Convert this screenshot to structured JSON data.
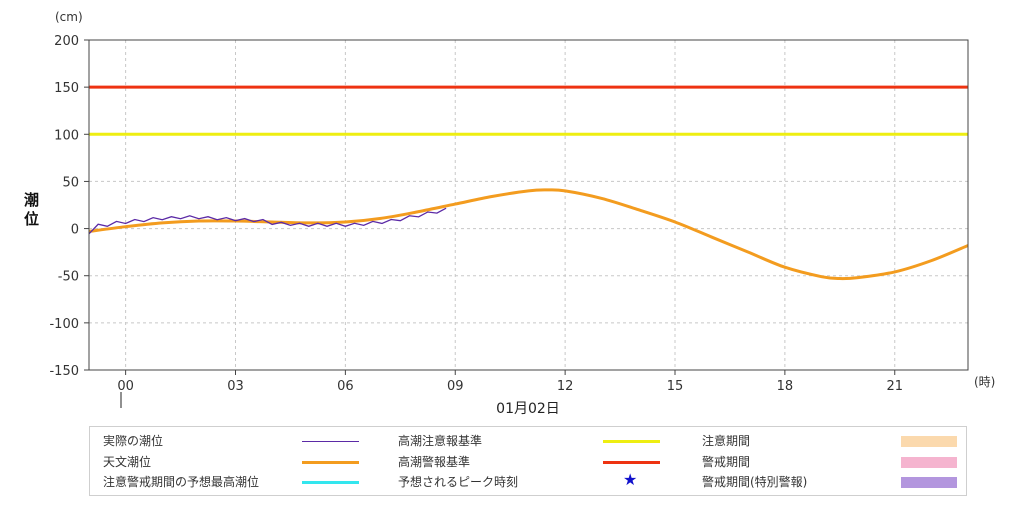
{
  "chart_data": {
    "type": "line",
    "unit_label": "(cm)",
    "ylabel": "潮位",
    "xlabel_unit": "(時)",
    "date_label": "01月02日",
    "x_range_hours": [
      -1,
      23
    ],
    "ylim": [
      -150,
      200
    ],
    "y_ticks": [
      200,
      150,
      100,
      50,
      0,
      -50,
      -100,
      -150
    ],
    "x_ticks": [
      0,
      3,
      6,
      9,
      12,
      15,
      18,
      21
    ],
    "x_tick_labels": [
      "00",
      "03",
      "06",
      "09",
      "12",
      "15",
      "18",
      "21"
    ],
    "grid": true,
    "colors": {
      "observed": "#5b2aa6",
      "astronomical": "#f39c1f",
      "warning": "#ee3311",
      "advisory": "#eeee11",
      "forecast_peak": "#33e6ee",
      "peak_star": "#1111cc",
      "advisory_period": "#fbd9ad",
      "warning_period": "#f5b4cf",
      "special_warning_period": "#b396de"
    },
    "thresholds": {
      "高潮警報基準": 150,
      "高潮注意報基準": 100
    },
    "series": [
      {
        "name": "天文潮位",
        "x": [
          -1,
          0,
          1,
          2,
          3,
          4,
          5,
          6,
          7,
          8,
          9,
          10,
          11,
          11.5,
          12,
          13,
          14,
          15,
          16,
          17,
          18,
          19,
          19.5,
          20,
          21,
          22,
          23
        ],
        "values": [
          -3,
          2,
          6,
          8,
          8,
          7,
          6,
          7,
          11,
          18,
          26,
          34,
          40,
          41,
          40,
          32,
          20,
          7,
          -9,
          -25,
          -41,
          -51,
          -53,
          -52,
          -46,
          -34,
          -18
        ]
      },
      {
        "name": "実際の潮位",
        "x": [
          -1,
          -0.75,
          -0.5,
          -0.25,
          0,
          0.25,
          0.5,
          0.75,
          1,
          1.25,
          1.5,
          1.75,
          2,
          2.25,
          2.5,
          2.75,
          3,
          3.25,
          3.5,
          3.75,
          4,
          4.25,
          4.5,
          4.75,
          5,
          5.25,
          5.5,
          5.75,
          6,
          6.25,
          6.5,
          6.75,
          7,
          7.25,
          7.5,
          7.75,
          8,
          8.25,
          8.5,
          8.75
        ],
        "values": [
          -4,
          3,
          4,
          6,
          7,
          8,
          9,
          10,
          11,
          11,
          12,
          12,
          12,
          11,
          11,
          10,
          10,
          9,
          9,
          8,
          6,
          5,
          5,
          4,
          4,
          4,
          4,
          4,
          4,
          4,
          5,
          6,
          7,
          8,
          10,
          12,
          14,
          16,
          18,
          20
        ]
      }
    ]
  },
  "legend": {
    "observed": "実際の潮位",
    "astronomical": "天文潮位",
    "forecast_peak": "注意警戒期間の予想最高潮位",
    "advisory": "高潮注意報基準",
    "warning": "高潮警報基準",
    "peak_time": "予想されるピーク時刻",
    "advisory_period": "注意期間",
    "warning_period": "警戒期間",
    "special_warning_period": "警戒期間(特別警報)",
    "star_symbol": "★"
  }
}
